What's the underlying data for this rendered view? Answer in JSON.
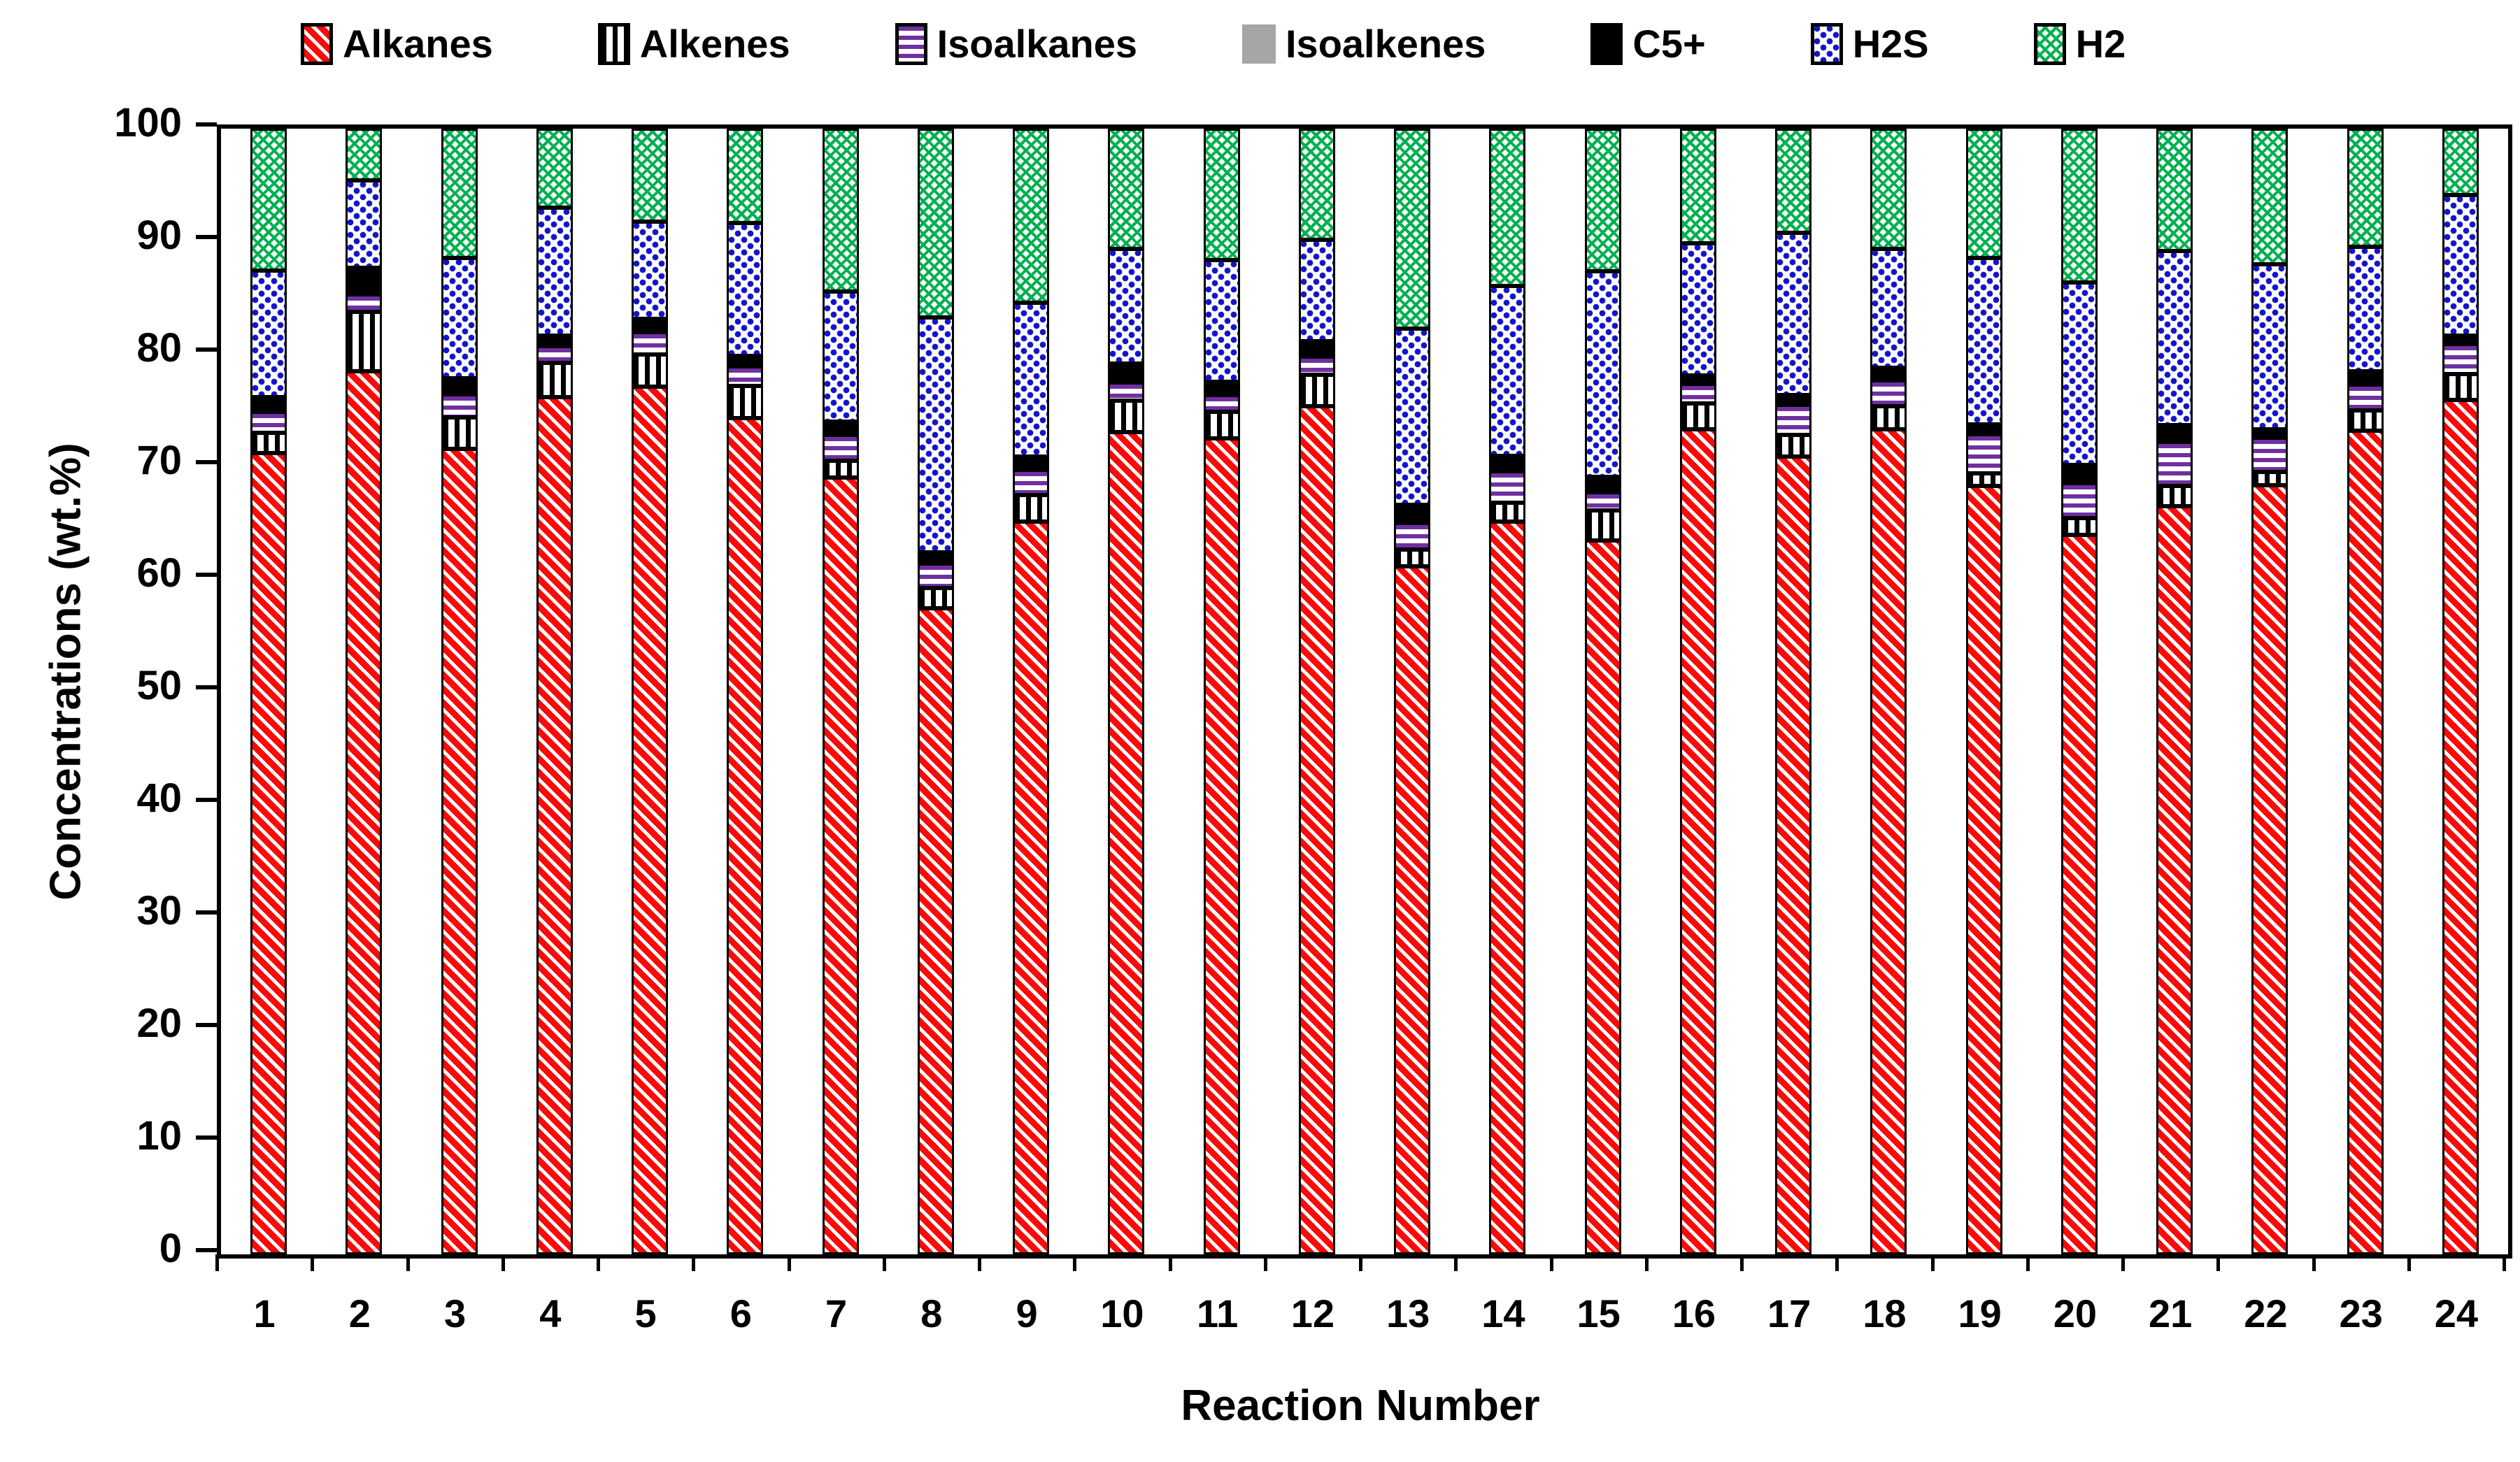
{
  "legend": {
    "items": [
      {
        "label": "Alkanes",
        "key": "alkanes"
      },
      {
        "label": "Alkenes",
        "key": "alkenes"
      },
      {
        "label": "Isoalkanes",
        "key": "isoalkanes"
      },
      {
        "label": "Isoalkenes",
        "key": "isoalkenes"
      },
      {
        "label": "C5+",
        "key": "c5plus"
      },
      {
        "label": "H2S",
        "key": "h2s"
      },
      {
        "label": "H2",
        "key": "h2"
      }
    ]
  },
  "axes": {
    "y": {
      "title": "Concentrations (wt.%)",
      "ticks": [
        0,
        10,
        20,
        30,
        40,
        50,
        60,
        70,
        80,
        90,
        100
      ],
      "min": 0,
      "max": 100
    },
    "x": {
      "title": "Reaction Number"
    }
  },
  "chart_data": {
    "type": "bar",
    "stacked": true,
    "title": "",
    "xlabel": "Reaction Number",
    "ylabel": "Concentrations (wt.%)",
    "ylim": [
      0,
      100
    ],
    "grid": false,
    "legend_position": "top",
    "categories": [
      "1",
      "2",
      "3",
      "4",
      "5",
      "6",
      "7",
      "8",
      "9",
      "10",
      "11",
      "12",
      "13",
      "14",
      "15",
      "16",
      "17",
      "18",
      "19",
      "20",
      "21",
      "22",
      "23",
      "24"
    ],
    "series": [
      {
        "name": "Alkanes",
        "key": "alkanes",
        "color": "#FF0000",
        "pattern": "diagonal-stripes",
        "values": [
          71.3,
          78.6,
          71.7,
          76.3,
          77.2,
          74.4,
          69.1,
          57.5,
          65.2,
          73.2,
          72.6,
          75.5,
          61.2,
          65.2,
          63.5,
          73.5,
          71.0,
          73.4,
          68.4,
          64.0,
          66.6,
          68.5,
          73.3,
          76.1
        ]
      },
      {
        "name": "Alkenes",
        "key": "alkenes",
        "color": "#000000",
        "pattern": "vertical-stripes",
        "values": [
          1.8,
          5.3,
          2.8,
          3.0,
          2.9,
          2.9,
          1.5,
          1.8,
          2.4,
          2.8,
          2.4,
          2.8,
          1.5,
          1.7,
          2.7,
          2.3,
          1.9,
          2.1,
          1.1,
          1.5,
          1.8,
          1.2,
          1.8,
          2.3
        ]
      },
      {
        "name": "Isoalkanes",
        "key": "isoalkanes",
        "color": "#7030A0",
        "pattern": "horizontal-stripes",
        "values": [
          1.9,
          1.5,
          2.0,
          1.5,
          2.0,
          1.7,
          2.3,
          2.2,
          2.2,
          1.6,
          1.5,
          1.6,
          2.4,
          2.8,
          1.6,
          1.7,
          2.7,
          2.3,
          3.5,
          3.1,
          3.9,
          3.0,
          2.3,
          2.7
        ]
      },
      {
        "name": "Isoalkenes",
        "key": "isoalkenes",
        "color": "#A6A6A6",
        "pattern": "solid",
        "values": [
          0.2,
          0.2,
          0.2,
          0.2,
          0.2,
          0.2,
          0.2,
          0.2,
          0.2,
          0.2,
          0.2,
          0.2,
          0.2,
          0.2,
          0.2,
          0.2,
          0.2,
          0.2,
          0.2,
          0.2,
          0.2,
          0.2,
          0.2,
          0.2
        ]
      },
      {
        "name": "C5+",
        "key": "c5plus",
        "color": "#000000",
        "pattern": "solid",
        "values": [
          0.9,
          2.0,
          1.1,
          0.6,
          0.8,
          0.6,
          0.8,
          0.6,
          0.8,
          1.3,
          0.8,
          1.0,
          1.2,
          1.0,
          1.0,
          0.3,
          0.5,
          0.7,
          0.5,
          1.3,
          1.1,
          0.3,
          0.8,
          0.3
        ]
      },
      {
        "name": "H2S",
        "key": "h2s",
        "color": "#1414CC",
        "pattern": "dots",
        "values": [
          11.3,
          7.8,
          10.7,
          11.4,
          8.6,
          11.8,
          11.6,
          20.9,
          13.7,
          10.2,
          10.8,
          9.0,
          15.7,
          15.1,
          18.3,
          11.8,
          14.4,
          10.6,
          14.8,
          16.2,
          15.5,
          14.7,
          11.1,
          12.5
        ]
      },
      {
        "name": "H2",
        "key": "h2",
        "color": "#00B050",
        "pattern": "diagonal-crosshatch",
        "values": [
          12.6,
          4.6,
          11.5,
          7.0,
          8.3,
          8.4,
          14.5,
          16.8,
          15.5,
          10.7,
          11.7,
          9.9,
          17.8,
          14.0,
          12.7,
          10.2,
          9.3,
          10.7,
          11.5,
          13.7,
          10.9,
          12.1,
          10.5,
          5.9
        ]
      }
    ]
  }
}
